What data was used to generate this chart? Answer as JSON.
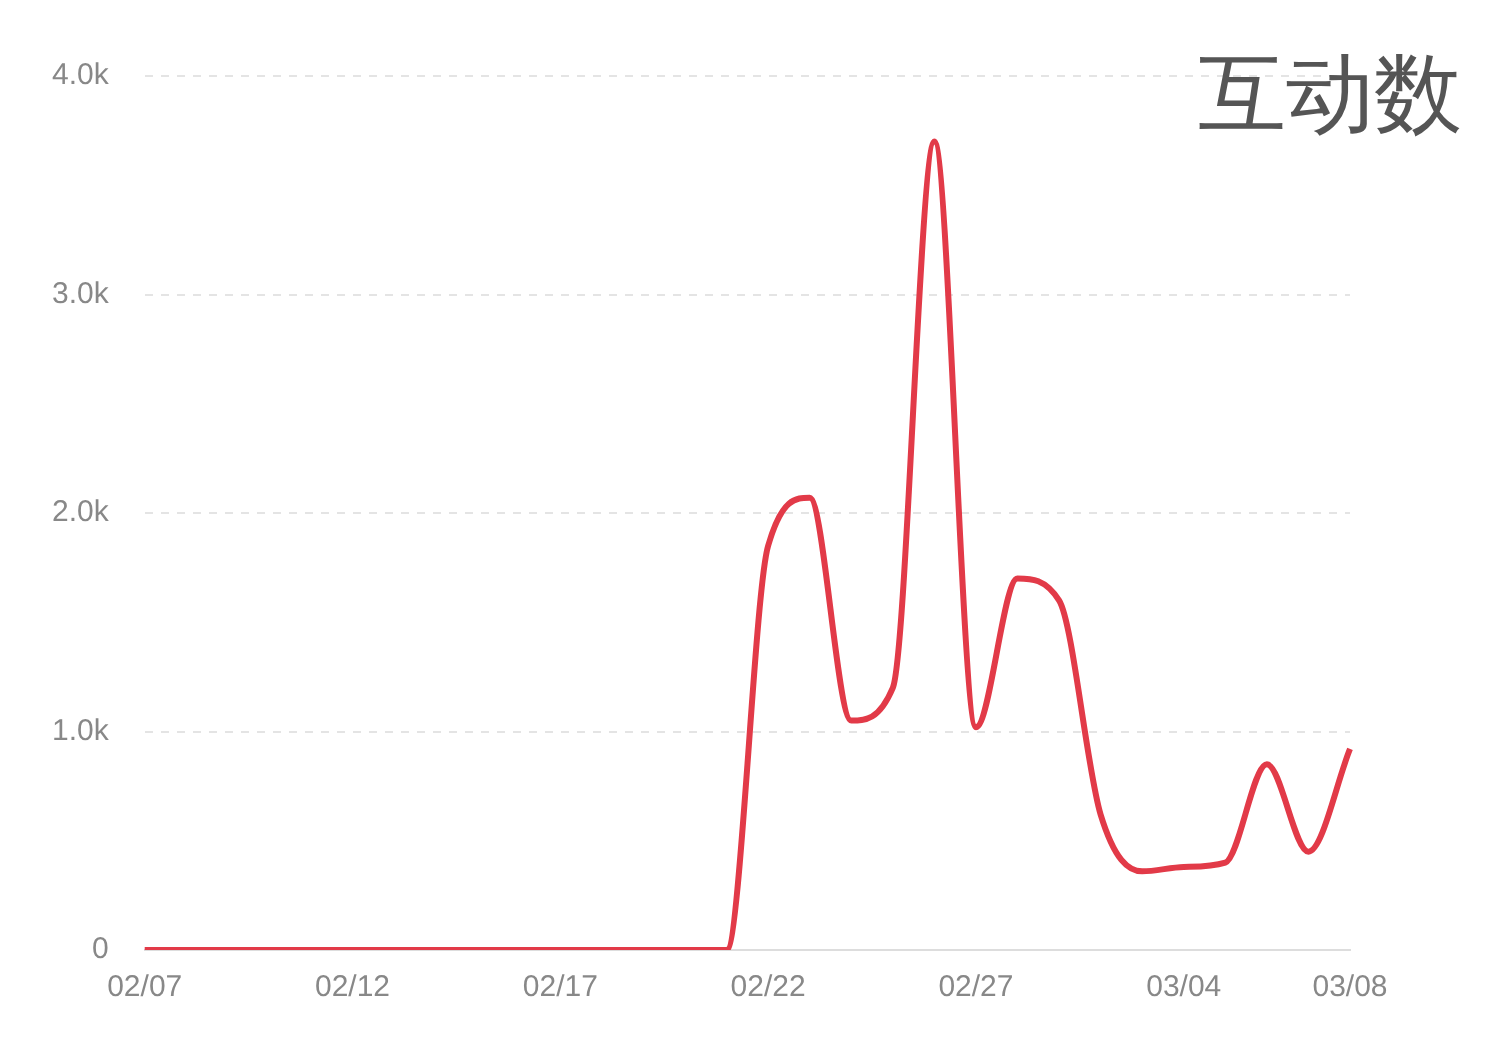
{
  "chart_data": {
    "type": "line",
    "title": "互动数",
    "categories": [
      "02/07",
      null,
      null,
      null,
      null,
      "02/12",
      null,
      null,
      null,
      null,
      "02/17",
      null,
      null,
      null,
      null,
      "02/22",
      null,
      null,
      null,
      null,
      "02/27",
      null,
      null,
      null,
      null,
      "03/04",
      null,
      null,
      null,
      "03/08"
    ],
    "series": [
      {
        "color": "#e23a48",
        "values": [
          0,
          0,
          0,
          0,
          0,
          0,
          0,
          0,
          0,
          0,
          0,
          0,
          0,
          0,
          0,
          1850,
          2070,
          1050,
          1200,
          3700,
          1020,
          1700,
          1600,
          620,
          360,
          380,
          400,
          850,
          450,
          920
        ]
      }
    ],
    "ylim": [
      0,
      4000
    ],
    "yticks": [
      0,
      {
        "value": 1000,
        "label": "1.0k"
      },
      {
        "value": 2000,
        "label": "2.0k"
      },
      {
        "value": 3000,
        "label": "3.0k"
      },
      {
        "value": 4000,
        "label": "4.0k"
      }
    ],
    "grid": "y",
    "marker": "none",
    "line_style": "solid",
    "legend": false
  }
}
